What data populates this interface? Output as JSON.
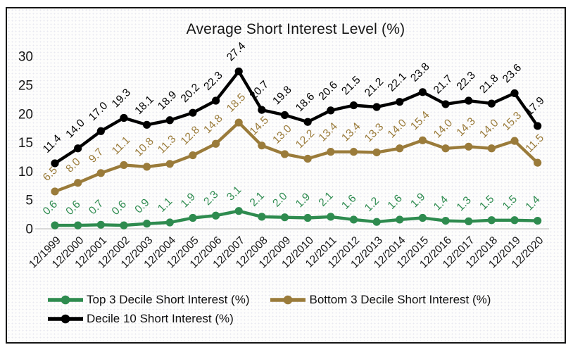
{
  "chart_data": {
    "type": "line",
    "title": "Average Short Interest Level (%)",
    "categories": [
      "12/1999",
      "12/2000",
      "12/2001",
      "12/2002",
      "12/2003",
      "12/2004",
      "12/2005",
      "12/2006",
      "12/2007",
      "12/2008",
      "12/2009",
      "12/2010",
      "12/2011",
      "12/2012",
      "12/2013",
      "12/2014",
      "12/2015",
      "12/2016",
      "12/2017",
      "12/2018",
      "12/2019",
      "12/2020"
    ],
    "y_ticks": [
      0,
      5,
      10,
      15,
      20,
      25,
      30
    ],
    "ylim": [
      0,
      30
    ],
    "grid": false,
    "data_labels": true,
    "label_decimals": 1,
    "label_rotation_deg": -45,
    "legend_position": "bottom",
    "baseline_color": "#d9d9d9",
    "series": [
      {
        "name": "Top 3 Decile Short Interest (%)",
        "color": "#2E8B4F",
        "values": [
          0.6,
          0.6,
          0.7,
          0.6,
          0.9,
          1.1,
          1.9,
          2.3,
          3.1,
          2.1,
          2.0,
          1.9,
          2.1,
          1.6,
          1.2,
          1.6,
          1.9,
          1.4,
          1.3,
          1.5,
          1.5,
          1.4
        ]
      },
      {
        "name": "Bottom 3 Decile Short Interest (%)",
        "color": "#9A7B3A",
        "values": [
          6.5,
          8.0,
          9.7,
          11.1,
          10.8,
          11.3,
          12.8,
          14.8,
          18.5,
          14.5,
          13.0,
          12.2,
          13.4,
          13.4,
          13.3,
          14.0,
          15.4,
          14.0,
          14.3,
          14.0,
          15.3,
          11.5
        ]
      },
      {
        "name": "Decile 10 Short Interest (%)",
        "color": "#000000",
        "values": [
          11.4,
          14.0,
          17.0,
          19.3,
          18.1,
          18.9,
          20.2,
          22.3,
          27.4,
          20.7,
          19.8,
          18.6,
          20.6,
          21.5,
          21.2,
          22.1,
          23.8,
          21.7,
          22.3,
          21.8,
          23.6,
          17.9
        ]
      }
    ]
  }
}
